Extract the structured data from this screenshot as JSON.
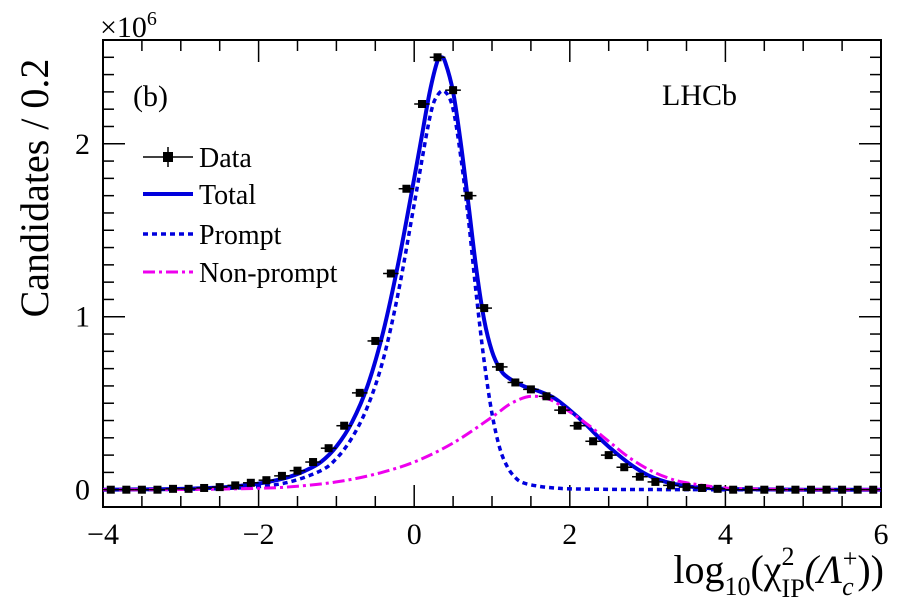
{
  "chart_data": {
    "type": "line",
    "panel_label": "(b)",
    "experiment_label": "LHCb",
    "ylabel": "Candidates / 0.2",
    "y_multiplier": "×10",
    "y_multiplier_exp": "6",
    "xlabel_parts": {
      "log": "log",
      "log_sub": "10",
      "open": "(χ",
      "chi_sup": "2",
      "chi_sub": "IP",
      "lambda": "(Λ",
      "lambda_sub": "c",
      "lambda_sup": "+",
      "close": "))"
    },
    "xlim": [
      -4,
      6
    ],
    "ylim": [
      -0.1,
      2.6
    ],
    "x_ticks": [
      -4,
      -2,
      0,
      2,
      4,
      6
    ],
    "x_tick_labels": [
      "−4",
      "−2",
      "0",
      "2",
      "4",
      "6"
    ],
    "y_ticks": [
      0,
      1,
      2
    ],
    "y_tick_labels": [
      "0",
      "1",
      "2"
    ],
    "legend": {
      "placement": "top-left",
      "entries": [
        {
          "label": "Data",
          "style": "data"
        },
        {
          "label": "Total",
          "style": "solid",
          "color": "#0000dd"
        },
        {
          "label": "Prompt",
          "style": "dotted",
          "color": "#0000dd"
        },
        {
          "label": "Non-prompt",
          "style": "dashdot",
          "color": "#ee00ee"
        }
      ]
    },
    "series": [
      {
        "name": "Data",
        "kind": "points",
        "x_err": 0.1,
        "x": [
          -3.9,
          -3.7,
          -3.5,
          -3.3,
          -3.1,
          -2.9,
          -2.7,
          -2.5,
          -2.3,
          -2.1,
          -1.9,
          -1.7,
          -1.5,
          -1.3,
          -1.1,
          -0.9,
          -0.7,
          -0.5,
          -0.3,
          -0.1,
          0.1,
          0.3,
          0.5,
          0.7,
          0.9,
          1.1,
          1.3,
          1.5,
          1.7,
          1.9,
          2.1,
          2.3,
          2.5,
          2.7,
          2.9,
          3.1,
          3.3,
          3.5,
          3.7,
          3.9,
          4.1,
          4.3,
          4.5,
          4.7,
          4.9,
          5.1,
          5.3,
          5.5,
          5.7,
          5.9
        ],
        "y": [
          0.0,
          0.0,
          0.0,
          0.0,
          0.005,
          0.005,
          0.01,
          0.015,
          0.025,
          0.04,
          0.055,
          0.08,
          0.11,
          0.16,
          0.24,
          0.37,
          0.56,
          0.86,
          1.25,
          1.74,
          2.23,
          2.5,
          2.31,
          1.7,
          1.05,
          0.71,
          0.62,
          0.58,
          0.54,
          0.46,
          0.37,
          0.28,
          0.2,
          0.13,
          0.075,
          0.045,
          0.025,
          0.015,
          0.01,
          0.005,
          0.0,
          0.0,
          0.0,
          0.0,
          0.0,
          0.0,
          0.0,
          0.0,
          0.0,
          0.0
        ]
      },
      {
        "name": "Total",
        "kind": "curve",
        "color": "#0000dd",
        "dash": "solid",
        "x": [
          -4.0,
          -3.5,
          -3.0,
          -2.5,
          -2.2,
          -2.0,
          -1.8,
          -1.6,
          -1.4,
          -1.2,
          -1.0,
          -0.8,
          -0.6,
          -0.4,
          -0.2,
          0.0,
          0.1,
          0.2,
          0.3,
          0.35,
          0.4,
          0.5,
          0.6,
          0.7,
          0.8,
          0.9,
          1.0,
          1.1,
          1.2,
          1.4,
          1.6,
          1.8,
          2.0,
          2.2,
          2.4,
          2.6,
          2.8,
          3.0,
          3.2,
          3.4,
          3.6,
          4.0,
          4.5,
          5.0,
          6.0
        ],
        "y": [
          0.0,
          0.002,
          0.005,
          0.013,
          0.024,
          0.035,
          0.052,
          0.075,
          0.11,
          0.16,
          0.25,
          0.39,
          0.6,
          0.91,
          1.32,
          1.8,
          2.05,
          2.3,
          2.48,
          2.5,
          2.47,
          2.3,
          2.0,
          1.64,
          1.27,
          0.98,
          0.8,
          0.7,
          0.65,
          0.6,
          0.57,
          0.53,
          0.46,
          0.38,
          0.29,
          0.21,
          0.14,
          0.085,
          0.05,
          0.028,
          0.015,
          0.005,
          0.002,
          0.0,
          0.0
        ]
      },
      {
        "name": "Prompt",
        "kind": "curve",
        "color": "#0000dd",
        "dash": "dotted",
        "x": [
          -4.0,
          -3.5,
          -3.0,
          -2.5,
          -2.0,
          -1.6,
          -1.2,
          -1.0,
          -0.8,
          -0.6,
          -0.4,
          -0.2,
          0.0,
          0.2,
          0.3,
          0.4,
          0.5,
          0.6,
          0.7,
          0.8,
          0.9,
          1.0,
          1.1,
          1.2,
          1.3,
          1.4,
          1.6,
          1.8,
          2.0,
          2.5,
          3.0,
          4.0,
          6.0
        ],
        "y": [
          0.0,
          0.001,
          0.003,
          0.006,
          0.018,
          0.045,
          0.11,
          0.18,
          0.3,
          0.48,
          0.75,
          1.15,
          1.65,
          2.15,
          2.28,
          2.3,
          2.2,
          1.92,
          1.55,
          1.12,
          0.74,
          0.44,
          0.24,
          0.13,
          0.07,
          0.04,
          0.02,
          0.01,
          0.005,
          0.002,
          0.001,
          0.0,
          0.0
        ]
      },
      {
        "name": "Non-prompt",
        "kind": "curve",
        "color": "#ee00ee",
        "dash": "dashdot",
        "x": [
          -4.0,
          -3.0,
          -2.0,
          -1.5,
          -1.0,
          -0.5,
          0.0,
          0.5,
          1.0,
          1.25,
          1.5,
          1.75,
          2.0,
          2.25,
          2.5,
          2.75,
          3.0,
          3.25,
          3.5,
          4.0,
          4.5,
          5.0,
          6.0
        ],
        "y": [
          0.0,
          0.001,
          0.008,
          0.02,
          0.045,
          0.09,
          0.16,
          0.27,
          0.42,
          0.5,
          0.54,
          0.52,
          0.45,
          0.37,
          0.28,
          0.19,
          0.12,
          0.07,
          0.04,
          0.01,
          0.003,
          0.0,
          0.0
        ]
      }
    ]
  }
}
